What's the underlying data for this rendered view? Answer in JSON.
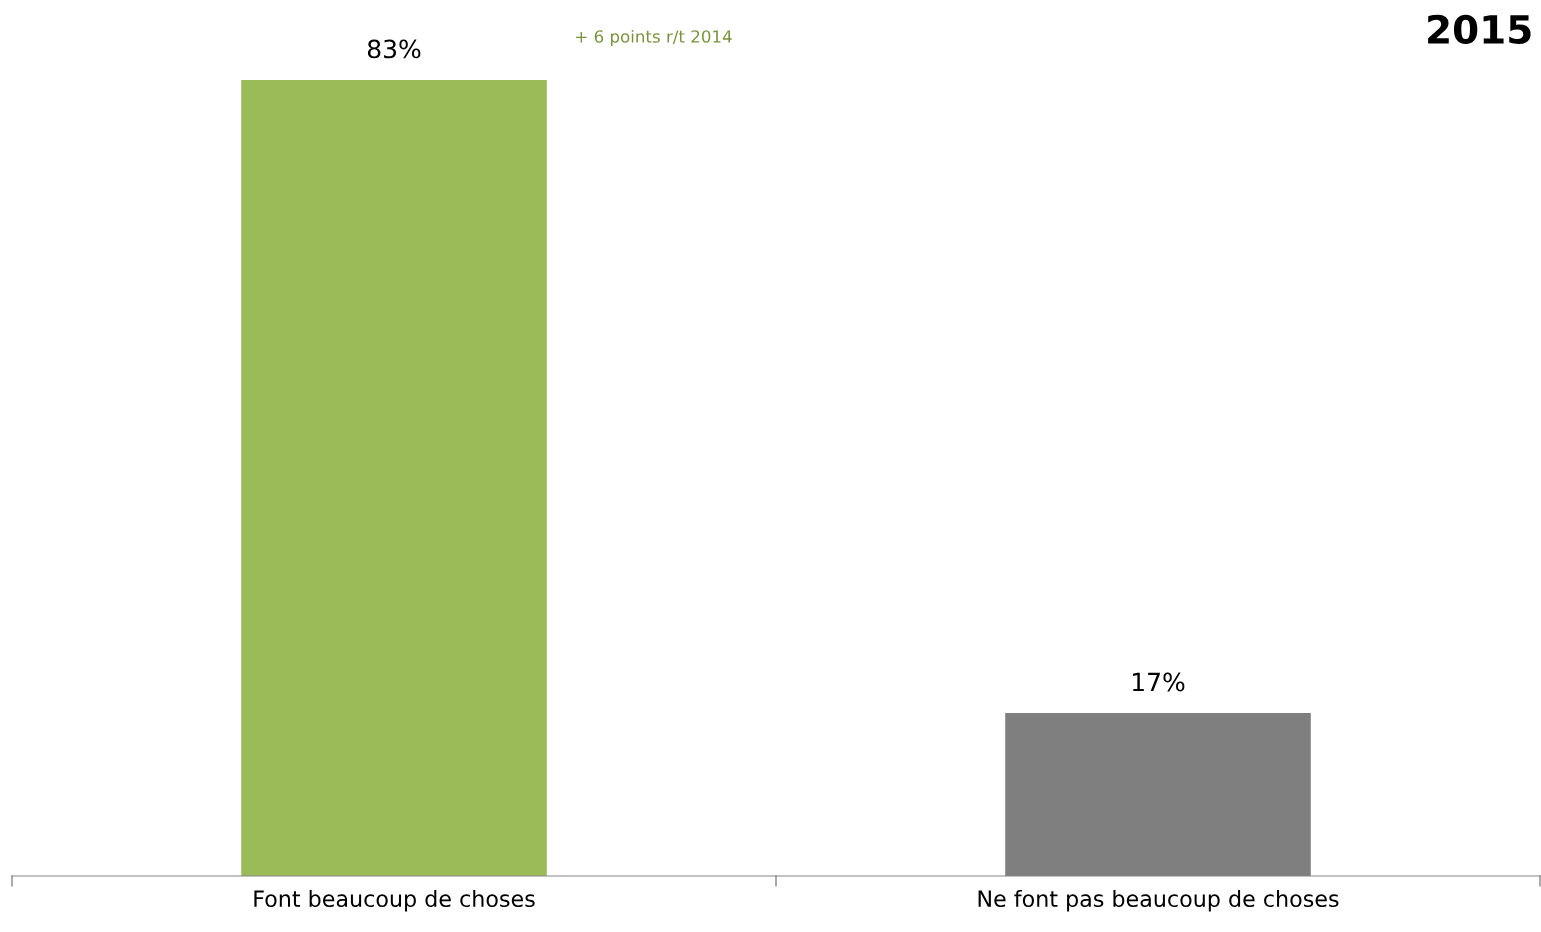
{
  "chart_data": {
    "type": "bar",
    "title": "2015",
    "categories": [
      "Font beaucoup de choses",
      "Ne font pas beaucoup de choses"
    ],
    "values": [
      83,
      17
    ],
    "value_labels": [
      "83%",
      "17%"
    ],
    "colors": [
      "#9bbb59",
      "#7f7f7f"
    ],
    "annotations": [
      "+ 6 points r/t 2014"
    ]
  }
}
